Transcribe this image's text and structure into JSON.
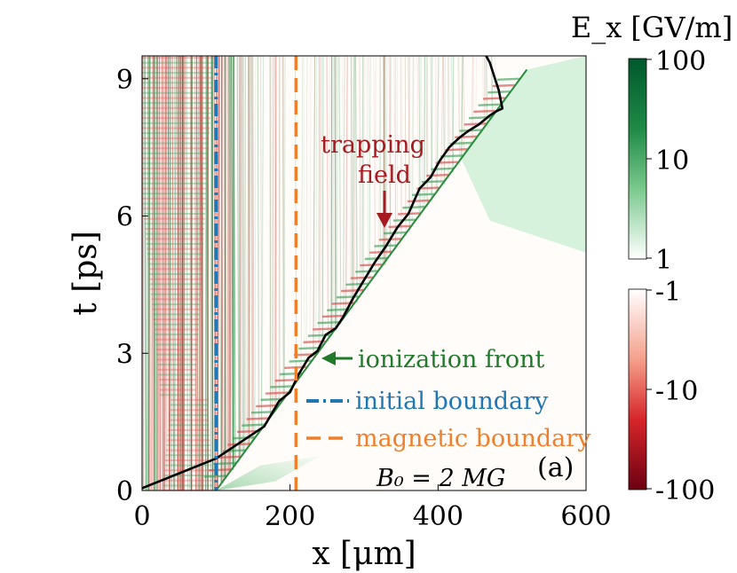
{
  "chart_data": {
    "type": "heatmap",
    "title": "",
    "panel_label": "(a)",
    "xlabel": "x [μm]",
    "ylabel": "t [ps]",
    "xlim": [
      0,
      600
    ],
    "ylim": [
      0,
      9.5
    ],
    "x_ticks": [
      0,
      200,
      400,
      600
    ],
    "x_tick_labels": [
      "0",
      "200",
      "400",
      "600"
    ],
    "y_ticks": [
      0,
      3,
      6,
      9
    ],
    "y_tick_labels": [
      "0",
      "3",
      "6",
      "9"
    ],
    "colorbar": {
      "title": "E_x [GV/m]",
      "positive": {
        "ticks": [
          "100",
          "10",
          "1"
        ],
        "scale": "log",
        "color": "#00582c"
      },
      "negative": {
        "ticks": [
          "-1",
          "-10",
          "-100"
        ],
        "scale": "log",
        "color": "#6b0011"
      }
    },
    "ionization_front": {
      "x": [
        100,
        520
      ],
      "t": [
        0,
        9.2
      ]
    },
    "electron_trajectory": {
      "x": [
        0,
        100,
        165,
        185,
        200,
        212,
        225,
        237,
        248,
        262,
        272,
        285,
        300,
        315,
        330,
        345,
        360,
        375,
        390,
        402,
        415,
        428,
        440,
        455,
        470,
        480,
        487,
        482,
        475,
        470,
        465
      ],
      "t": [
        0.05,
        0.7,
        1.4,
        1.95,
        2.15,
        2.55,
        2.9,
        3.05,
        3.4,
        3.55,
        3.8,
        4.2,
        4.6,
        5.0,
        5.35,
        5.75,
        6.05,
        6.6,
        6.85,
        7.2,
        7.5,
        7.7,
        7.85,
        8.0,
        8.2,
        8.3,
        8.35,
        8.75,
        9.1,
        9.35,
        9.5
      ]
    },
    "lines": [
      {
        "name": "initial boundary",
        "x": 100,
        "style": "dash-dot",
        "color": "#1f77b4"
      },
      {
        "name": "magnetic boundary",
        "x": 208,
        "style": "dashed",
        "color": "#f07f2b"
      }
    ],
    "annotations": [
      {
        "text": "trapping field",
        "line1": "trapping",
        "line2": "field",
        "color": "#a61b22",
        "x": 332,
        "t": 5.7
      },
      {
        "text": "ionization front",
        "color": "#217a2b",
        "x": 244,
        "t": 2.95
      },
      {
        "text": "initial boundary",
        "color": "#1f77b4"
      },
      {
        "text": "magnetic boundary",
        "color": "#f07f2b"
      },
      {
        "text": "B₀ = 2 MG",
        "color": "#000000"
      }
    ]
  }
}
